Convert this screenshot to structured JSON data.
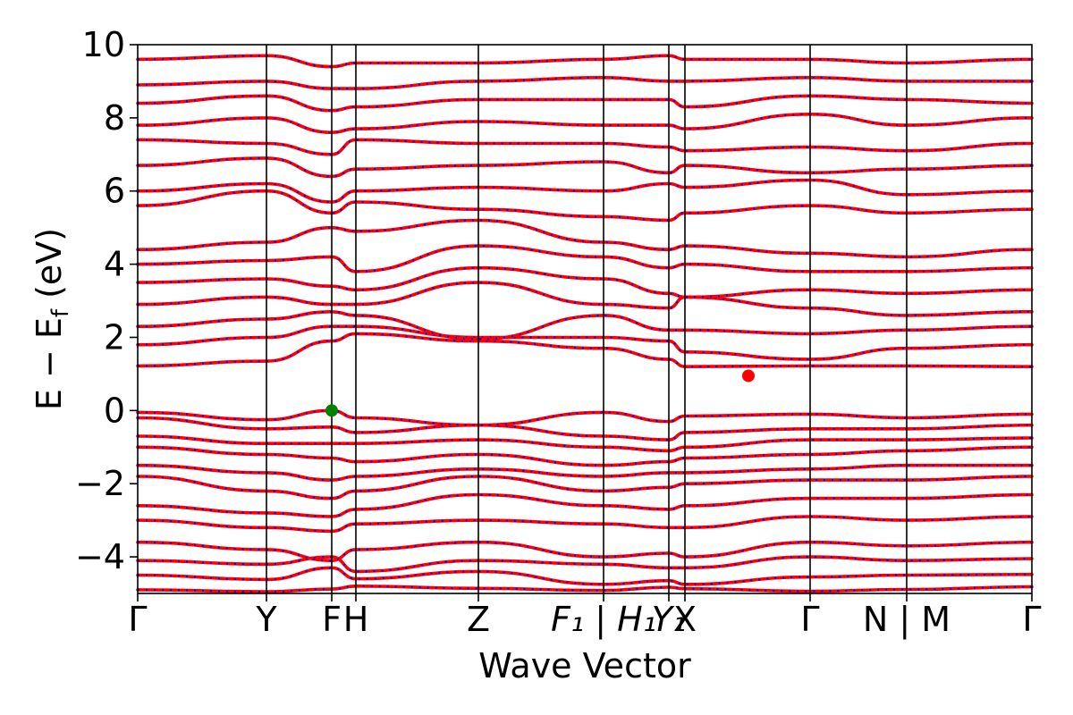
{
  "chart_data": {
    "type": "line",
    "xlabel": "Wave Vector",
    "ylabel": "E − E",
    "ylabel_sub": "f",
    "ylabel_unit": " (eV)",
    "ylim": [
      -5,
      10
    ],
    "yticks": [
      10,
      8,
      6,
      4,
      2,
      0,
      -2,
      -4
    ],
    "ytick_labels": [
      "10",
      "8",
      "6",
      "4",
      "2",
      "0",
      "−2",
      "−4"
    ],
    "xlim": [
      0,
      1
    ],
    "kpoints": [
      {
        "label": "Γ",
        "x": 0.0
      },
      {
        "label": "Y",
        "x": 0.144
      },
      {
        "label": "F",
        "x": 0.217
      },
      {
        "label": "H",
        "x": 0.244
      },
      {
        "label": "Z",
        "x": 0.381
      },
      {
        "label": "F₁ | H₁",
        "x": 0.521
      },
      {
        "label": "Y₁",
        "x": 0.594
      },
      {
        "label": "X",
        "x": 0.612
      },
      {
        "label": "Γ",
        "x": 0.752
      },
      {
        "label": "N | M",
        "x": 0.86
      },
      {
        "label": "Γ",
        "x": 1.0
      }
    ],
    "segment_breaks": [
      0.521,
      0.86
    ],
    "series": [
      {
        "color": "#ff0000",
        "style": "solid"
      },
      {
        "color": "#0000ff",
        "style": "dotted"
      }
    ],
    "highlights": [
      {
        "x": 0.217,
        "y": 0.0,
        "color": "#008000"
      },
      {
        "x": 0.683,
        "y": 0.95,
        "color": "#ff0000"
      }
    ],
    "bands": [
      [
        -4.9,
        -4.95,
        -4.88,
        -4.8,
        -4.86,
        -4.92,
        -4.83,
        -4.87,
        -4.94,
        -4.89,
        -4.82
      ],
      [
        -4.5,
        -4.62,
        -4.3,
        -4.6,
        -4.4,
        -4.75,
        -4.65,
        -4.75,
        -4.55,
        -4.5,
        -4.48
      ],
      [
        -4.1,
        -4.2,
        -4.0,
        -4.4,
        -4.1,
        -4.2,
        -4.3,
        -4.3,
        -4.0,
        -4.1,
        -4.05
      ],
      [
        -3.6,
        -3.8,
        -4.1,
        -3.8,
        -3.6,
        -4.0,
        -3.9,
        -4.0,
        -3.6,
        -3.7,
        -3.6
      ],
      [
        -3.0,
        -3.2,
        -3.3,
        -3.1,
        -3.0,
        -3.1,
        -3.2,
        -3.2,
        -2.9,
        -3.0,
        -2.9
      ],
      [
        -2.6,
        -2.8,
        -2.9,
        -2.7,
        -2.3,
        -2.6,
        -2.7,
        -2.6,
        -2.4,
        -2.4,
        -2.3
      ],
      [
        -1.8,
        -2.2,
        -2.4,
        -2.2,
        -1.8,
        -2.2,
        -2.1,
        -2.0,
        -1.9,
        -1.9,
        -1.8
      ],
      [
        -1.5,
        -1.7,
        -1.9,
        -1.8,
        -1.6,
        -1.8,
        -1.7,
        -1.7,
        -1.6,
        -1.5,
        -1.5
      ],
      [
        -1.0,
        -1.2,
        -1.3,
        -1.4,
        -1.2,
        -1.5,
        -1.4,
        -1.3,
        -1.2,
        -1.1,
        -1.0
      ],
      [
        -0.7,
        -0.9,
        -0.9,
        -0.9,
        -0.8,
        -1.0,
        -1.1,
        -1.0,
        -0.8,
        -0.8,
        -0.75
      ],
      [
        -0.2,
        -0.5,
        -0.45,
        -0.6,
        -0.4,
        -0.7,
        -0.8,
        -0.6,
        -0.5,
        -0.5,
        -0.4
      ],
      [
        -0.05,
        -0.25,
        0.0,
        -0.2,
        -0.4,
        -0.05,
        -0.3,
        -0.15,
        -0.1,
        -0.2,
        -0.1
      ],
      [
        1.22,
        1.35,
        1.9,
        2.1,
        1.9,
        1.7,
        1.4,
        1.2,
        1.22,
        1.22,
        1.2
      ],
      [
        1.8,
        2.0,
        2.3,
        2.3,
        2.0,
        2.0,
        1.9,
        1.6,
        1.4,
        1.7,
        1.8
      ],
      [
        2.3,
        2.5,
        2.7,
        2.6,
        1.95,
        2.6,
        2.2,
        2.2,
        2.1,
        2.2,
        2.3
      ],
      [
        2.9,
        3.1,
        2.9,
        2.9,
        3.5,
        2.9,
        2.8,
        3.1,
        2.8,
        2.6,
        2.7
      ],
      [
        3.5,
        3.6,
        3.4,
        3.3,
        3.9,
        3.6,
        3.2,
        3.1,
        3.3,
        3.2,
        3.3
      ],
      [
        4.0,
        4.1,
        4.2,
        3.8,
        4.5,
        4.2,
        3.9,
        4.0,
        3.8,
        3.8,
        3.9
      ],
      [
        4.4,
        4.6,
        5.0,
        4.9,
        5.2,
        4.6,
        4.4,
        4.5,
        4.3,
        4.2,
        4.4
      ],
      [
        5.6,
        6.0,
        5.4,
        5.7,
        5.5,
        5.3,
        5.2,
        5.4,
        5.6,
        5.4,
        5.5
      ],
      [
        6.0,
        6.2,
        5.7,
        6.0,
        6.1,
        6.0,
        6.2,
        6.1,
        6.3,
        5.9,
        6.0
      ],
      [
        6.7,
        6.9,
        6.4,
        6.6,
        6.7,
        6.8,
        6.5,
        6.7,
        6.5,
        6.6,
        6.7
      ],
      [
        7.4,
        7.3,
        7.0,
        7.4,
        7.3,
        7.3,
        7.2,
        7.1,
        7.2,
        7.1,
        7.3
      ],
      [
        7.8,
        8.0,
        7.6,
        7.7,
        7.9,
        7.8,
        7.8,
        7.7,
        8.1,
        7.8,
        8.0
      ],
      [
        8.4,
        8.6,
        8.2,
        8.3,
        8.5,
        8.5,
        8.5,
        8.3,
        8.6,
        8.5,
        8.4
      ],
      [
        8.9,
        9.0,
        8.8,
        8.8,
        9.0,
        9.1,
        9.0,
        9.0,
        9.1,
        9.0,
        9.0
      ],
      [
        9.6,
        9.7,
        9.4,
        9.5,
        9.5,
        9.6,
        9.7,
        9.6,
        9.6,
        9.5,
        9.6
      ]
    ]
  }
}
